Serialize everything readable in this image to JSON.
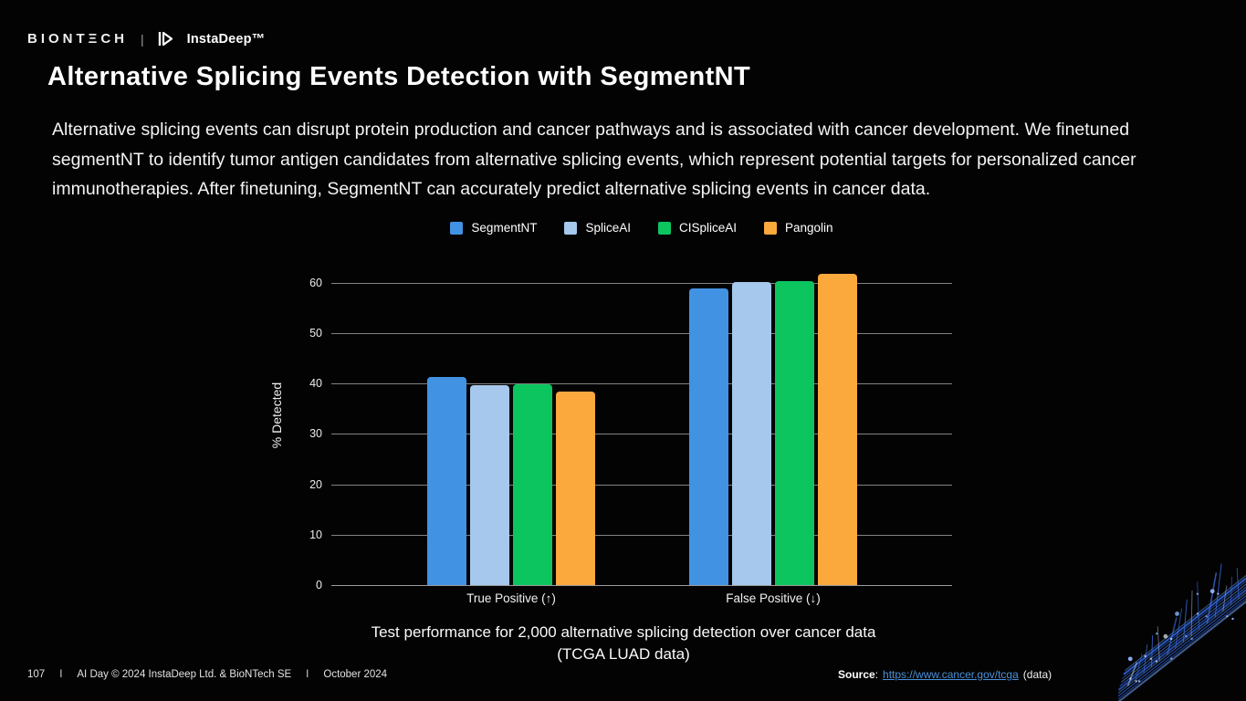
{
  "header": {
    "biontech_text": "BIONTΞCH",
    "divider": "|",
    "instadeep_text": "InstaDeep™"
  },
  "title": "Alternative Splicing Events Detection with SegmentNT",
  "description": "Alternative splicing events can disrupt protein production and cancer pathways and is associated with cancer development. We finetuned segmentNT to identify tumor antigen candidates from alternative splicing events, which represent potential targets for personalized cancer immunotherapies. After finetuning, SegmentNT can accurately predict alternative splicing events in cancer data.",
  "chart_data": {
    "type": "bar",
    "categories": [
      "True Positive (↑)",
      "False Positive (↓)"
    ],
    "series": [
      {
        "name": "SegmentNT",
        "color": "#4292e3",
        "values": [
          41.2,
          58.8
        ]
      },
      {
        "name": "SpliceAI",
        "color": "#a6c8ec",
        "values": [
          39.7,
          60.2
        ]
      },
      {
        "name": "CISpliceAI",
        "color": "#0cc55e",
        "values": [
          39.8,
          60.3
        ]
      },
      {
        "name": "Pangolin",
        "color": "#fba83d",
        "values": [
          38.3,
          61.7
        ]
      }
    ],
    "ylabel": "% Detected",
    "xlabel": "",
    "ylim": [
      0,
      65
    ],
    "yticks": [
      0,
      10,
      20,
      30,
      40,
      50,
      60
    ],
    "grid": true,
    "legend_position": "top",
    "caption_line1": "Test performance for 2,000 alternative splicing detection over cancer data",
    "caption_line2": "(TCGA LUAD data)"
  },
  "footer": {
    "page_number": "107",
    "separator": "I",
    "copyright": "AI Day © 2024 InstaDeep Ltd. & BioNTech SE",
    "date": "October 2024"
  },
  "source": {
    "label": "Source",
    "colon": ":",
    "link": "https://www.cancer.gov/tcga",
    "suffix": "(data)"
  },
  "colors": {
    "background": "#030304",
    "grid": "#a3a3a3",
    "link": "#4a90d9",
    "art_blue": "#2f63d8"
  }
}
